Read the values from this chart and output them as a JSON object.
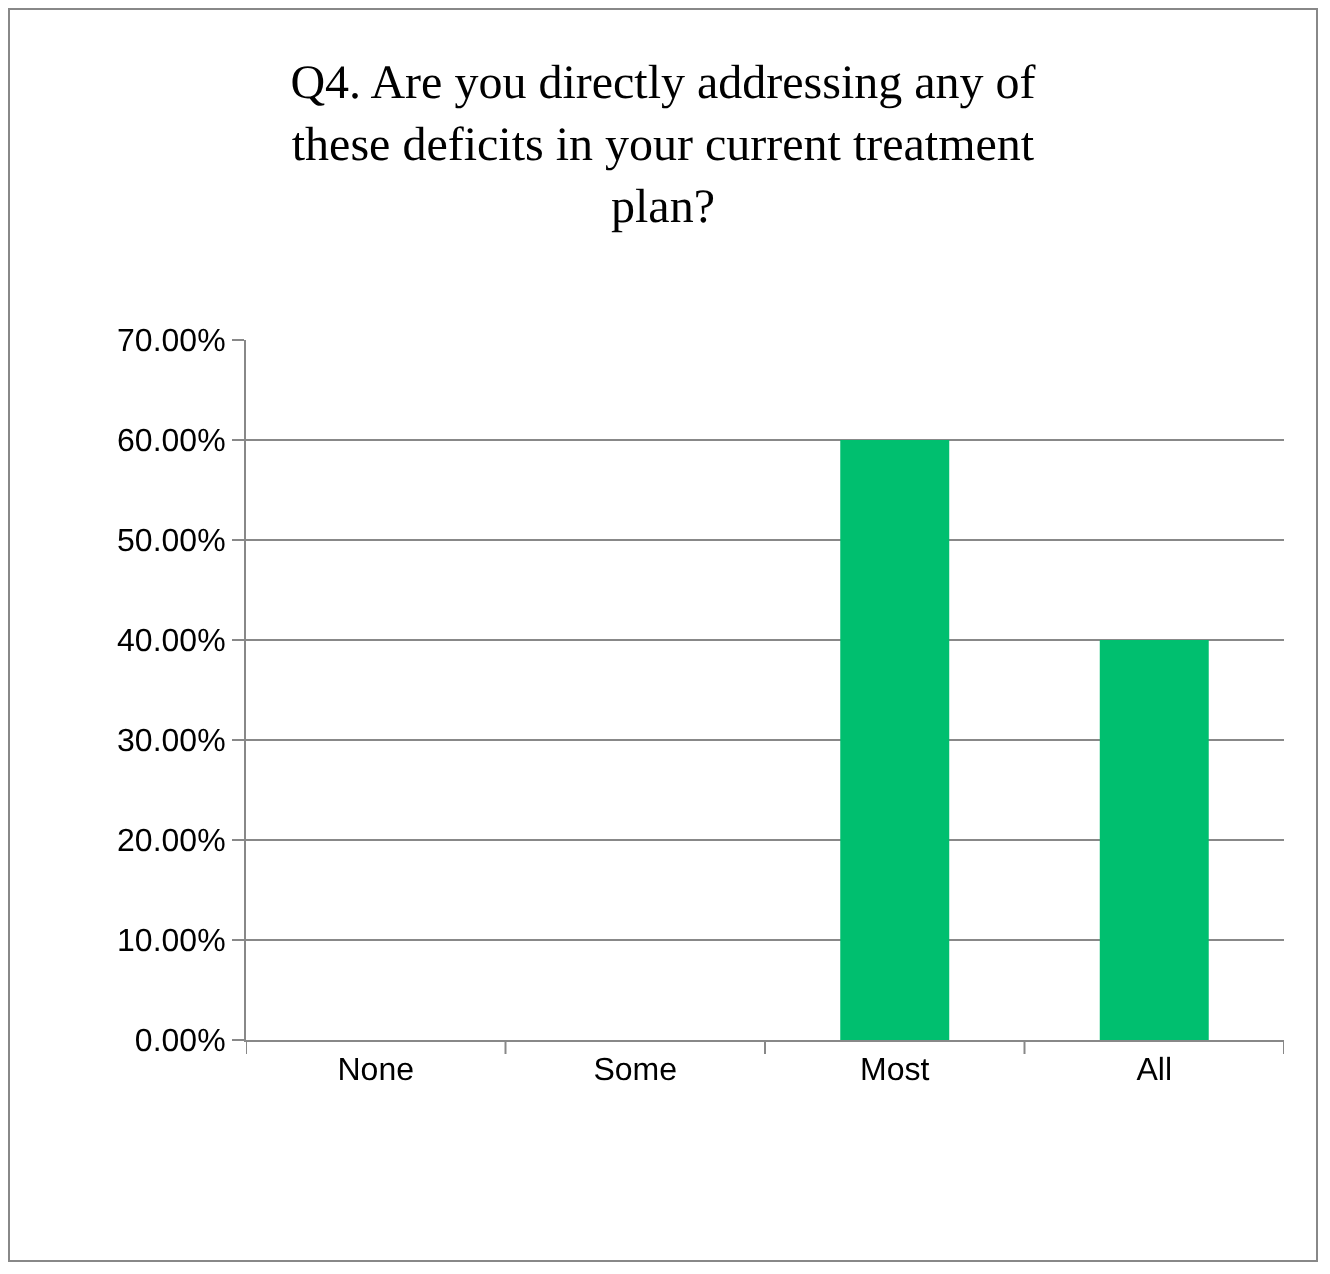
{
  "chart_data": {
    "type": "bar",
    "title": "Q4. Are you directly addressing any of these deficits in your current treatment plan?",
    "categories": [
      "None",
      "Some",
      "Most",
      "All"
    ],
    "values": [
      0,
      0,
      60,
      40
    ],
    "color": "#00bf6f",
    "ylim": [
      0,
      70
    ],
    "yticks": [
      {
        "value": 0,
        "label": "0.00%"
      },
      {
        "value": 10,
        "label": "10.00%"
      },
      {
        "value": 20,
        "label": "20.00%"
      },
      {
        "value": 30,
        "label": "30.00%"
      },
      {
        "value": 40,
        "label": "40.00%"
      },
      {
        "value": 50,
        "label": "50.00%"
      },
      {
        "value": 60,
        "label": "60.00%"
      },
      {
        "value": 70,
        "label": "70.00%"
      }
    ],
    "grid": "y",
    "legend": false
  }
}
